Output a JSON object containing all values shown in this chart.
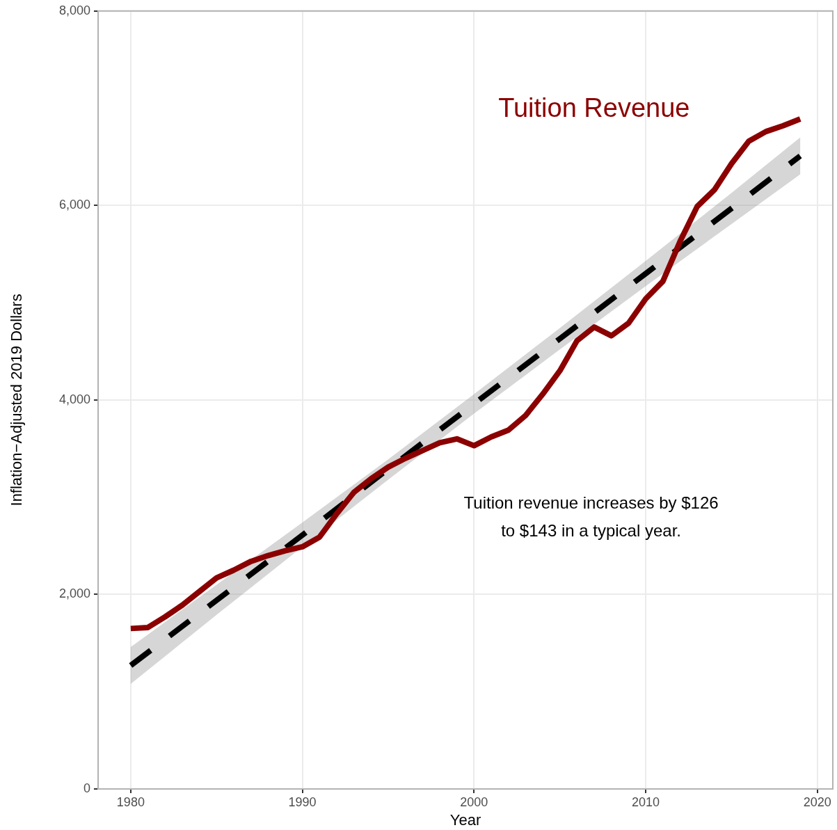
{
  "chart_data": {
    "type": "line",
    "xlabel": "Year",
    "ylabel": "Inflation−Adjusted 2019 Dollars",
    "x": [
      1980,
      1981,
      1982,
      1983,
      1984,
      1985,
      1986,
      1987,
      1988,
      1989,
      1990,
      1991,
      1992,
      1993,
      1994,
      1995,
      1996,
      1997,
      1998,
      1999,
      2000,
      2001,
      2002,
      2003,
      2004,
      2005,
      2006,
      2007,
      2008,
      2009,
      2010,
      2011,
      2012,
      2013,
      2014,
      2015,
      2016,
      2017,
      2018,
      2019
    ],
    "series": [
      {
        "name": "Tuition Revenue",
        "color": "#8b0000",
        "line_style": "solid",
        "values": [
          1650,
          1660,
          1770,
          1890,
          2030,
          2170,
          2250,
          2340,
          2400,
          2450,
          2490,
          2590,
          2830,
          3050,
          3190,
          3310,
          3400,
          3480,
          3560,
          3600,
          3530,
          3620,
          3690,
          3840,
          4060,
          4300,
          4610,
          4750,
          4660,
          4790,
          5040,
          5220,
          5630,
          5990,
          6160,
          6430,
          6660,
          6760,
          6820,
          6890
        ]
      },
      {
        "type": "line",
        "color": "#000000",
        "line_style": "dashed",
        "x": [
          1980,
          1985,
          1990,
          1995,
          2000,
          2005,
          2010,
          2015,
          2019
        ],
        "values": [
          1270,
          1940,
          2610,
          3290,
          3960,
          4630,
          5300,
          5970,
          6510
        ],
        "lower": [
          1080,
          1790,
          2490,
          3180,
          3860,
          4520,
          5170,
          5810,
          6320
        ],
        "upper": [
          1460,
          2100,
          2740,
          3390,
          4060,
          4740,
          5430,
          6130,
          6700
        ]
      }
    ],
    "xlim": [
      1978.1,
      2020.9
    ],
    "ylim": [
      0,
      8000
    ],
    "xticks": [
      1980,
      1990,
      2000,
      2010,
      2020
    ],
    "yticks": [
      0,
      {
        "value": 2000,
        "label": "2,000"
      },
      {
        "value": 4000,
        "label": "4,000"
      },
      {
        "value": 6000,
        "label": "6,000"
      },
      {
        "value": 8000,
        "label": "8,000"
      }
    ],
    "grid": true,
    "marker": "none",
    "annotations": [
      "Tuition revenue increases by $126\nto $143 in a typical year."
    ]
  }
}
